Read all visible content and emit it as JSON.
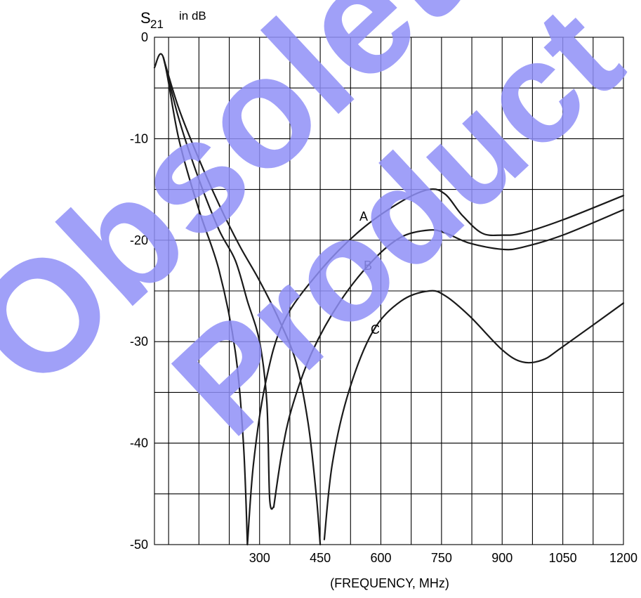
{
  "chart_data": {
    "type": "line",
    "ylabel_main": "S",
    "ylabel_sub": "21",
    "ylabel_unit": "in dB",
    "xlabel": "(FREQUENCY, MHz)",
    "xlim": [
      40,
      1200
    ],
    "ylim": [
      -50,
      0
    ],
    "x_ticks": [
      300,
      450,
      600,
      750,
      900,
      1050,
      1200
    ],
    "x_tick_labels": [
      "300",
      "450",
      "600",
      "750",
      "900",
      "1050",
      "1200"
    ],
    "y_ticks": [
      0,
      -10,
      -20,
      -30,
      -40,
      -50
    ],
    "y_tick_labels": [
      "0",
      "-10",
      "-20",
      "-30",
      "-40",
      "-50"
    ],
    "grid": true,
    "series": [
      {
        "name": "A",
        "low_branch": [
          [
            40,
            -3
          ],
          [
            62,
            -2
          ],
          [
            100,
            -10
          ],
          [
            150,
            -17
          ],
          [
            200,
            -23
          ],
          [
            240,
            -31
          ],
          [
            260,
            -40
          ],
          [
            270,
            -50
          ]
        ],
        "high_branch": [
          [
            270,
            -50
          ],
          [
            285,
            -42
          ],
          [
            315,
            -34
          ],
          [
            360,
            -28
          ],
          [
            450,
            -23
          ],
          [
            550,
            -19
          ],
          [
            650,
            -16.2
          ],
          [
            720,
            -15
          ],
          [
            760,
            -15.5
          ],
          [
            800,
            -17.5
          ],
          [
            850,
            -19.3
          ],
          [
            900,
            -19.5
          ],
          [
            950,
            -19.3
          ],
          [
            1050,
            -18
          ],
          [
            1200,
            -15.6
          ]
        ]
      },
      {
        "name": "B",
        "low_branch": [
          [
            62,
            -2
          ],
          [
            100,
            -8
          ],
          [
            150,
            -14
          ],
          [
            200,
            -19
          ],
          [
            240,
            -22
          ],
          [
            270,
            -26
          ],
          [
            300,
            -30
          ],
          [
            318,
            -36
          ],
          [
            325,
            -45.5
          ],
          [
            335,
            -46.3
          ]
        ],
        "high_branch": [
          [
            335,
            -46.3
          ],
          [
            355,
            -41
          ],
          [
            380,
            -36.5
          ],
          [
            430,
            -31
          ],
          [
            500,
            -26
          ],
          [
            580,
            -22
          ],
          [
            650,
            -19.7
          ],
          [
            720,
            -19
          ],
          [
            760,
            -19.3
          ],
          [
            820,
            -20.3
          ],
          [
            900,
            -20.9
          ],
          [
            950,
            -20.7
          ],
          [
            1050,
            -19.5
          ],
          [
            1200,
            -17
          ]
        ]
      },
      {
        "name": "C",
        "low_branch": [
          [
            62,
            -2
          ],
          [
            100,
            -7
          ],
          [
            150,
            -12
          ],
          [
            200,
            -16.5
          ],
          [
            250,
            -20.5
          ],
          [
            300,
            -24
          ],
          [
            350,
            -28
          ],
          [
            390,
            -32
          ],
          [
            420,
            -38
          ],
          [
            440,
            -45
          ],
          [
            450,
            -50
          ]
        ],
        "high_branch": [
          [
            460,
            -49.5
          ],
          [
            480,
            -42
          ],
          [
            520,
            -35
          ],
          [
            580,
            -29
          ],
          [
            650,
            -26
          ],
          [
            720,
            -25
          ],
          [
            760,
            -25.5
          ],
          [
            820,
            -27.5
          ],
          [
            900,
            -30.8
          ],
          [
            950,
            -32
          ],
          [
            1000,
            -31.8
          ],
          [
            1050,
            -30.5
          ],
          [
            1200,
            -26.2
          ]
        ]
      }
    ],
    "curve_labels": [
      "A",
      "B",
      "C"
    ]
  },
  "watermark": {
    "line1": "Obsolete",
    "line2": "Product",
    "color": "#8f8ff7"
  }
}
